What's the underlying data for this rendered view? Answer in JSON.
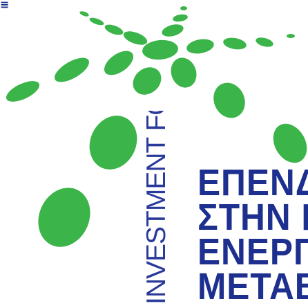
{
  "logo": {
    "corner_mark": "≡",
    "forum_label": "INVESTMENT FORUM",
    "headline_lines": [
      "ΕΠΕΝΔ",
      "ΣΤΗΝ Π",
      "ΕΝΕΡΓΙ",
      "ΜΕΤΑΒ"
    ],
    "dot_color": "#3bb44a",
    "text_color": "#1d2f8f"
  }
}
